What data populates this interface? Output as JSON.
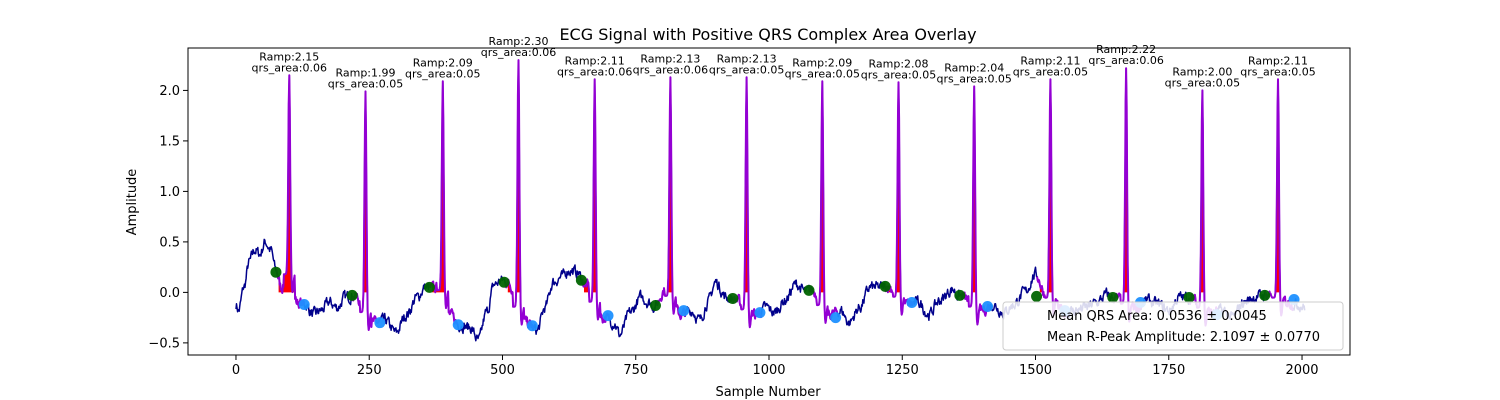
{
  "chart_data": {
    "type": "line",
    "title": "ECG Signal with Positive QRS Complex Area Overlay",
    "xlabel": "Sample Number",
    "ylabel": "Amplitude",
    "xlim": [
      -90,
      2090
    ],
    "ylim": [
      -0.62,
      2.42
    ],
    "x_ticks": [
      0,
      250,
      500,
      750,
      1000,
      1250,
      1500,
      1750,
      2000
    ],
    "y_ticks": [
      -0.5,
      0.0,
      0.5,
      1.0,
      1.5,
      2.0
    ],
    "x_tick_labels": [
      "0",
      "250",
      "500",
      "750",
      "1000",
      "1250",
      "1500",
      "1750",
      "2000"
    ],
    "y_tick_labels": [
      "−0.5",
      "0.0",
      "0.5",
      "1.0",
      "1.5",
      "2.0"
    ],
    "grid": false,
    "legend_placement": "lower-right",
    "legend": [
      "Mean QRS Area: 0.0536 ± 0.0045",
      "Mean R-Peak Amplitude: 2.1097 ± 0.0770"
    ],
    "colors": {
      "signal": "#00008b",
      "qrs_segment": "#9400d3",
      "qrs_area": "#ff0000",
      "onset_marker": "#006400",
      "offset_marker": "#1e90ff"
    },
    "signal_waypoints": [
      [
        0,
        -0.12
      ],
      [
        5,
        -0.18
      ],
      [
        15,
        0.05
      ],
      [
        25,
        0.3
      ],
      [
        35,
        0.42
      ],
      [
        45,
        0.38
      ],
      [
        55,
        0.5
      ],
      [
        65,
        0.42
      ],
      [
        75,
        0.22
      ],
      [
        85,
        0.05
      ],
      [
        100,
        0.18
      ],
      [
        115,
        -0.1
      ],
      [
        130,
        -0.12
      ],
      [
        145,
        -0.22
      ],
      [
        160,
        -0.18
      ],
      [
        175,
        -0.1
      ],
      [
        190,
        -0.15
      ],
      [
        205,
        -0.05
      ],
      [
        220,
        -0.03
      ],
      [
        260,
        -0.3
      ],
      [
        280,
        -0.28
      ],
      [
        300,
        -0.4
      ],
      [
        320,
        -0.22
      ],
      [
        340,
        -0.05
      ],
      [
        355,
        0.05
      ],
      [
        365,
        0.04
      ],
      [
        385,
        0.05
      ],
      [
        400,
        -0.22
      ],
      [
        420,
        -0.32
      ],
      [
        440,
        -0.35
      ],
      [
        455,
        -0.48
      ],
      [
        470,
        -0.2
      ],
      [
        485,
        0.08
      ],
      [
        500,
        0.12
      ],
      [
        510,
        0.1
      ],
      [
        545,
        -0.3
      ],
      [
        565,
        -0.38
      ],
      [
        580,
        -0.15
      ],
      [
        595,
        0.1
      ],
      [
        610,
        0.15
      ],
      [
        625,
        0.22
      ],
      [
        640,
        0.2
      ],
      [
        655,
        0.08
      ],
      [
        690,
        -0.25
      ],
      [
        710,
        -0.3
      ],
      [
        720,
        -0.42
      ],
      [
        740,
        -0.2
      ],
      [
        760,
        -0.05
      ],
      [
        775,
        -0.1
      ],
      [
        785,
        -0.14
      ],
      [
        805,
        0.03
      ],
      [
        835,
        -0.22
      ],
      [
        855,
        -0.18
      ],
      [
        870,
        -0.28
      ],
      [
        885,
        -0.1
      ],
      [
        900,
        0.1
      ],
      [
        920,
        -0.05
      ],
      [
        930,
        -0.06
      ],
      [
        975,
        -0.22
      ],
      [
        995,
        -0.15
      ],
      [
        1010,
        -0.2
      ],
      [
        1030,
        -0.08
      ],
      [
        1050,
        0.08
      ],
      [
        1070,
        0.0
      ],
      [
        1080,
        0.02
      ],
      [
        1115,
        -0.22
      ],
      [
        1135,
        -0.18
      ],
      [
        1150,
        -0.3
      ],
      [
        1170,
        -0.15
      ],
      [
        1190,
        0.05
      ],
      [
        1210,
        0.05
      ],
      [
        1222,
        0.06
      ],
      [
        1260,
        -0.12
      ],
      [
        1280,
        -0.1
      ],
      [
        1300,
        -0.22
      ],
      [
        1320,
        -0.08
      ],
      [
        1345,
        0.03
      ],
      [
        1355,
        -0.03
      ],
      [
        1400,
        -0.18
      ],
      [
        1420,
        -0.12
      ],
      [
        1440,
        -0.2
      ],
      [
        1460,
        -0.12
      ],
      [
        1480,
        0.0
      ],
      [
        1500,
        0.18
      ],
      [
        1520,
        -0.03
      ],
      [
        1555,
        -0.2
      ],
      [
        1575,
        -0.18
      ],
      [
        1595,
        -0.15
      ],
      [
        1615,
        -0.1
      ],
      [
        1635,
        -0.02
      ],
      [
        1642,
        -0.05
      ],
      [
        1690,
        -0.15
      ],
      [
        1710,
        -0.08
      ],
      [
        1730,
        -0.12
      ],
      [
        1750,
        -0.18
      ],
      [
        1770,
        -0.05
      ],
      [
        1785,
        -0.05
      ],
      [
        1830,
        -0.2
      ],
      [
        1850,
        -0.18
      ],
      [
        1870,
        -0.25
      ],
      [
        1890,
        -0.1
      ],
      [
        1910,
        -0.05
      ],
      [
        1925,
        -0.03
      ],
      [
        1940,
        -0.02
      ],
      [
        1975,
        -0.1
      ],
      [
        1995,
        -0.12
      ],
      [
        2005,
        -0.15
      ]
    ],
    "beats": [
      {
        "r_x": 100,
        "r_amp": 2.15,
        "qrs_area": 0.06,
        "onset": [
          75,
          0.2
        ],
        "offset": [
          128,
          -0.12
        ],
        "label_line1": "Ramp:2.15",
        "label_line2": "qrs_area:0.06"
      },
      {
        "r_x": 243,
        "r_amp": 1.99,
        "qrs_area": 0.05,
        "onset": [
          218,
          -0.03
        ],
        "offset": [
          270,
          -0.3
        ],
        "label_line1": "Ramp:1.99",
        "label_line2": "qrs_area:0.05"
      },
      {
        "r_x": 388,
        "r_amp": 2.09,
        "qrs_area": 0.05,
        "onset": [
          363,
          0.05
        ],
        "offset": [
          417,
          -0.32
        ],
        "label_line1": "Ramp:2.09",
        "label_line2": "qrs_area:0.05"
      },
      {
        "r_x": 530,
        "r_amp": 2.3,
        "qrs_area": 0.06,
        "onset": [
          503,
          0.1
        ],
        "offset": [
          556,
          -0.33
        ],
        "label_line1": "Ramp:2.30",
        "label_line2": "qrs_area:0.06"
      },
      {
        "r_x": 673,
        "r_amp": 2.11,
        "qrs_area": 0.06,
        "onset": [
          648,
          0.12
        ],
        "offset": [
          698,
          -0.23
        ],
        "label_line1": "Ramp:2.11",
        "label_line2": "qrs_area:0.06"
      },
      {
        "r_x": 815,
        "r_amp": 2.13,
        "qrs_area": 0.06,
        "onset": [
          787,
          -0.13
        ],
        "offset": [
          840,
          -0.18
        ],
        "label_line1": "Ramp:2.13",
        "label_line2": "qrs_area:0.06"
      },
      {
        "r_x": 958,
        "r_amp": 2.13,
        "qrs_area": 0.05,
        "onset": [
          932,
          -0.06
        ],
        "offset": [
          983,
          -0.2
        ],
        "label_line1": "Ramp:2.13",
        "label_line2": "qrs_area:0.05"
      },
      {
        "r_x": 1100,
        "r_amp": 2.09,
        "qrs_area": 0.05,
        "onset": [
          1075,
          0.02
        ],
        "offset": [
          1125,
          -0.25
        ],
        "label_line1": "Ramp:2.09",
        "label_line2": "qrs_area:0.05"
      },
      {
        "r_x": 1243,
        "r_amp": 2.08,
        "qrs_area": 0.05,
        "onset": [
          1218,
          0.06
        ],
        "offset": [
          1268,
          -0.1
        ],
        "label_line1": "Ramp:2.08",
        "label_line2": "qrs_area:0.05"
      },
      {
        "r_x": 1385,
        "r_amp": 2.04,
        "qrs_area": 0.05,
        "onset": [
          1358,
          -0.03
        ],
        "offset": [
          1410,
          -0.14
        ],
        "label_line1": "Ramp:2.04",
        "label_line2": "qrs_area:0.05"
      },
      {
        "r_x": 1528,
        "r_amp": 2.11,
        "qrs_area": 0.05,
        "onset": [
          1502,
          -0.04
        ],
        "offset": [
          1555,
          -0.18
        ],
        "label_line1": "Ramp:2.11",
        "label_line2": "qrs_area:0.05"
      },
      {
        "r_x": 1670,
        "r_amp": 2.22,
        "qrs_area": 0.06,
        "onset": [
          1645,
          -0.05
        ],
        "offset": [
          1697,
          -0.1
        ],
        "label_line1": "Ramp:2.22",
        "label_line2": "qrs_area:0.06"
      },
      {
        "r_x": 1813,
        "r_amp": 2.0,
        "qrs_area": 0.05,
        "onset": [
          1788,
          -0.05
        ],
        "offset": [
          1840,
          -0.22
        ],
        "label_line1": "Ramp:2.00",
        "label_line2": "qrs_area:0.05"
      },
      {
        "r_x": 1955,
        "r_amp": 2.11,
        "qrs_area": 0.05,
        "onset": [
          1930,
          -0.03
        ],
        "offset": [
          1985,
          -0.07
        ],
        "label_line1": "Ramp:2.11",
        "label_line2": "qrs_area:0.05"
      }
    ]
  }
}
